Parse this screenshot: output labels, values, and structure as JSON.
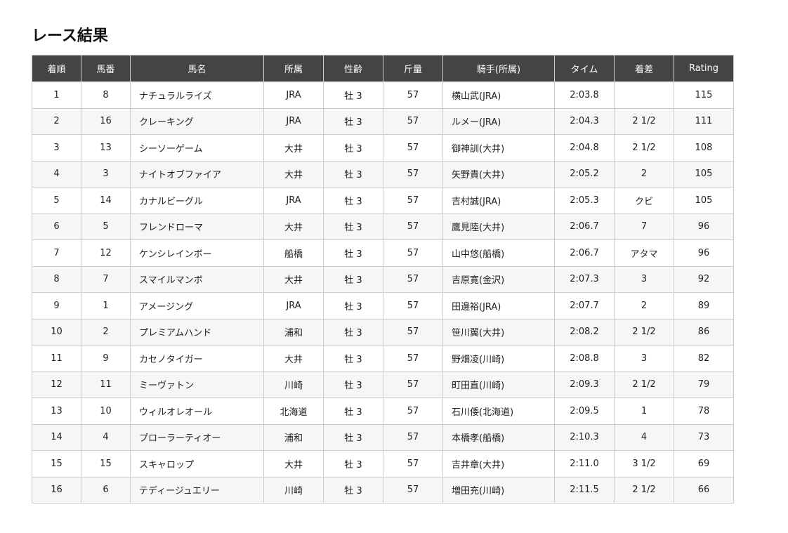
{
  "title": "レース結果",
  "columns": [
    "着順",
    "馬番",
    "馬名",
    "所属",
    "性齢",
    "斤量",
    "騎手(所属)",
    "タイム",
    "着差",
    "Rating"
  ],
  "rows": [
    [
      "1",
      "8",
      "ナチュラルライズ",
      "JRA",
      "牡 3",
      "57",
      "横山武(JRA)",
      "2:03.8",
      "",
      "115"
    ],
    [
      "2",
      "16",
      "クレーキング",
      "JRA",
      "牡 3",
      "57",
      "ルメー(JRA)",
      "2:04.3",
      "2 1/2",
      "111"
    ],
    [
      "3",
      "13",
      "シーソーゲーム",
      "大井",
      "牡 3",
      "57",
      "御神訓(大井)",
      "2:04.8",
      "2 1/2",
      "108"
    ],
    [
      "4",
      "3",
      "ナイトオブファイア",
      "大井",
      "牡 3",
      "57",
      "矢野貴(大井)",
      "2:05.2",
      "2",
      "105"
    ],
    [
      "5",
      "14",
      "カナルビーグル",
      "JRA",
      "牡 3",
      "57",
      "吉村誠(JRA)",
      "2:05.3",
      "クビ",
      "105"
    ],
    [
      "6",
      "5",
      "フレンドローマ",
      "大井",
      "牡 3",
      "57",
      "鷹見陸(大井)",
      "2:06.7",
      "7",
      "96"
    ],
    [
      "7",
      "12",
      "ケンシレインボー",
      "船橋",
      "牡 3",
      "57",
      "山中悠(船橋)",
      "2:06.7",
      "アタマ",
      "96"
    ],
    [
      "8",
      "7",
      "スマイルマンボ",
      "大井",
      "牡 3",
      "57",
      "吉原寛(金沢)",
      "2:07.3",
      "3",
      "92"
    ],
    [
      "9",
      "1",
      "アメージング",
      "JRA",
      "牡 3",
      "57",
      "田邊裕(JRA)",
      "2:07.7",
      "2",
      "89"
    ],
    [
      "10",
      "2",
      "プレミアムハンド",
      "浦和",
      "牡 3",
      "57",
      "笹川翼(大井)",
      "2:08.2",
      "2 1/2",
      "86"
    ],
    [
      "11",
      "9",
      "カセノタイガー",
      "大井",
      "牡 3",
      "57",
      "野畑凌(川崎)",
      "2:08.8",
      "3",
      "82"
    ],
    [
      "12",
      "11",
      "ミーヴァトン",
      "川崎",
      "牡 3",
      "57",
      "町田直(川崎)",
      "2:09.3",
      "2 1/2",
      "79"
    ],
    [
      "13",
      "10",
      "ウィルオレオール",
      "北海道",
      "牡 3",
      "57",
      "石川倭(北海道)",
      "2:09.5",
      "1",
      "78"
    ],
    [
      "14",
      "4",
      "プローラーティオー",
      "浦和",
      "牡 3",
      "57",
      "本橋孝(船橋)",
      "2:10.3",
      "4",
      "73"
    ],
    [
      "15",
      "15",
      "スキャロップ",
      "大井",
      "牡 3",
      "57",
      "吉井章(大井)",
      "2:11.0",
      "3 1/2",
      "69"
    ],
    [
      "16",
      "6",
      "テディージュエリー",
      "川崎",
      "牡 3",
      "57",
      "増田充(川崎)",
      "2:11.5",
      "2 1/2",
      "66"
    ]
  ]
}
